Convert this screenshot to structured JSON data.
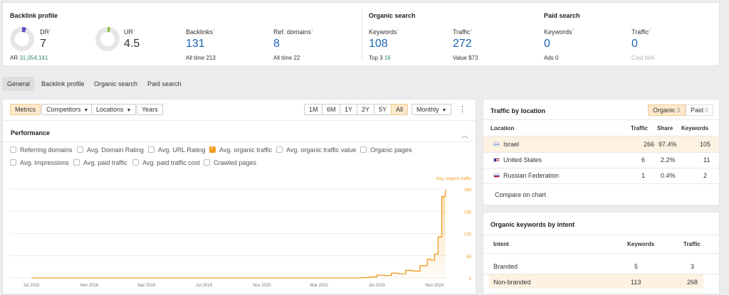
{
  "backlink_profile": {
    "title": "Backlink profile",
    "dr": {
      "label": "DR",
      "value": "7",
      "ar_label": "AR",
      "ar_value": "31,054,141"
    },
    "ur": {
      "label": "UR",
      "value": "4.5"
    },
    "backlinks": {
      "label": "Backlinks",
      "value": "131",
      "sub_label": "All time",
      "sub_value": "213"
    },
    "ref_domains": {
      "label": "Ref. domains",
      "value": "8",
      "sub_label": "All time",
      "sub_value": "22"
    }
  },
  "organic_search": {
    "title": "Organic search",
    "keywords": {
      "label": "Keywords",
      "value": "108",
      "sub_label": "Top 3",
      "sub_value": "16"
    },
    "traffic": {
      "label": "Traffic",
      "value": "272",
      "sub_label": "Value",
      "sub_value": "$73"
    }
  },
  "paid_search": {
    "title": "Paid search",
    "keywords": {
      "label": "Keywords",
      "value": "0",
      "sub_label": "Ads",
      "sub_value": "0"
    },
    "traffic": {
      "label": "Traffic",
      "value": "0",
      "sub_label": "Cost",
      "sub_value": "N/A"
    }
  },
  "info_mark": "i",
  "tabs": [
    "General",
    "Backlink profile",
    "Organic search",
    "Paid search"
  ],
  "toolbar": {
    "metrics": "Metrics",
    "competitors": "Competitors",
    "locations": "Locations",
    "years": "Years",
    "ranges": [
      "1M",
      "6M",
      "1Y",
      "2Y",
      "5Y",
      "All"
    ],
    "interval": "Monthly",
    "more_icon": "⋮"
  },
  "performance": {
    "title": "Performance",
    "checkboxes_row1": [
      "Referring domains",
      "Avg. Domain Rating",
      "Avg. URL Rating",
      "Avg. organic traffic",
      "Avg. organic traffic value",
      "Organic pages"
    ],
    "checkboxes_row2": [
      "Avg. Impressions",
      "Avg. paid traffic",
      "Avg. paid traffic cost",
      "Crawled pages"
    ],
    "checked": "Avg. organic traffic"
  },
  "chart_data": {
    "type": "line",
    "series": [
      {
        "name": "Avg. organic traffic",
        "color": "#f29b1e"
      }
    ],
    "y_ticks": [
      260,
      195,
      130,
      65,
      0
    ],
    "ylim": [
      0,
      260
    ],
    "x_ticks": [
      "Jul 2015",
      "Nov 2016",
      "Mar 2018",
      "Jul 2019",
      "Nov 2020",
      "Mar 2022",
      "Jul 2023",
      "Nov 2024"
    ],
    "points": [
      {
        "x": "2015-07",
        "y": 0
      },
      {
        "x": "2016-07",
        "y": 0
      },
      {
        "x": "2017-07",
        "y": 0
      },
      {
        "x": "2018-07",
        "y": 0
      },
      {
        "x": "2019-07",
        "y": 0
      },
      {
        "x": "2020-07",
        "y": 0
      },
      {
        "x": "2021-07",
        "y": 0
      },
      {
        "x": "2022-07",
        "y": 0
      },
      {
        "x": "2023-01",
        "y": 0
      },
      {
        "x": "2023-03",
        "y": 1
      },
      {
        "x": "2023-05",
        "y": 3
      },
      {
        "x": "2023-07",
        "y": 8
      },
      {
        "x": "2023-09",
        "y": 7
      },
      {
        "x": "2023-11",
        "y": 14
      },
      {
        "x": "2024-01",
        "y": 12
      },
      {
        "x": "2024-03",
        "y": 22
      },
      {
        "x": "2024-05",
        "y": 20
      },
      {
        "x": "2024-07",
        "y": 36
      },
      {
        "x": "2024-09",
        "y": 55
      },
      {
        "x": "2024-10",
        "y": 52
      },
      {
        "x": "2024-11",
        "y": 70
      },
      {
        "x": "2024-12",
        "y": 120
      },
      {
        "x": "2025-01",
        "y": 238
      },
      {
        "x": "2025-02",
        "y": 258
      }
    ]
  },
  "traffic_by_location": {
    "title": "Traffic by location",
    "toggle": [
      {
        "label": "Organic",
        "count": "3"
      },
      {
        "label": "Paid",
        "count": "0"
      }
    ],
    "columns": [
      "Location",
      "Traffic",
      "Share",
      "Keywords"
    ],
    "rows": [
      {
        "location": "Israel",
        "traffic": "266",
        "share": "97.4%",
        "keywords": "105"
      },
      {
        "location": "United States",
        "traffic": "6",
        "share": "2.2%",
        "keywords": "11"
      },
      {
        "location": "Russian Federation",
        "traffic": "1",
        "share": "0.4%",
        "keywords": "2"
      }
    ],
    "compare_link": "Compare on chart"
  },
  "keywords_by_intent": {
    "title": "Organic keywords by intent",
    "columns": [
      "Intent",
      "Keywords",
      "Traffic"
    ],
    "rows": [
      {
        "intent": "Branded",
        "keywords": "5",
        "traffic": "3"
      },
      {
        "intent": "Non-branded",
        "keywords": "113",
        "traffic": "268"
      }
    ]
  }
}
